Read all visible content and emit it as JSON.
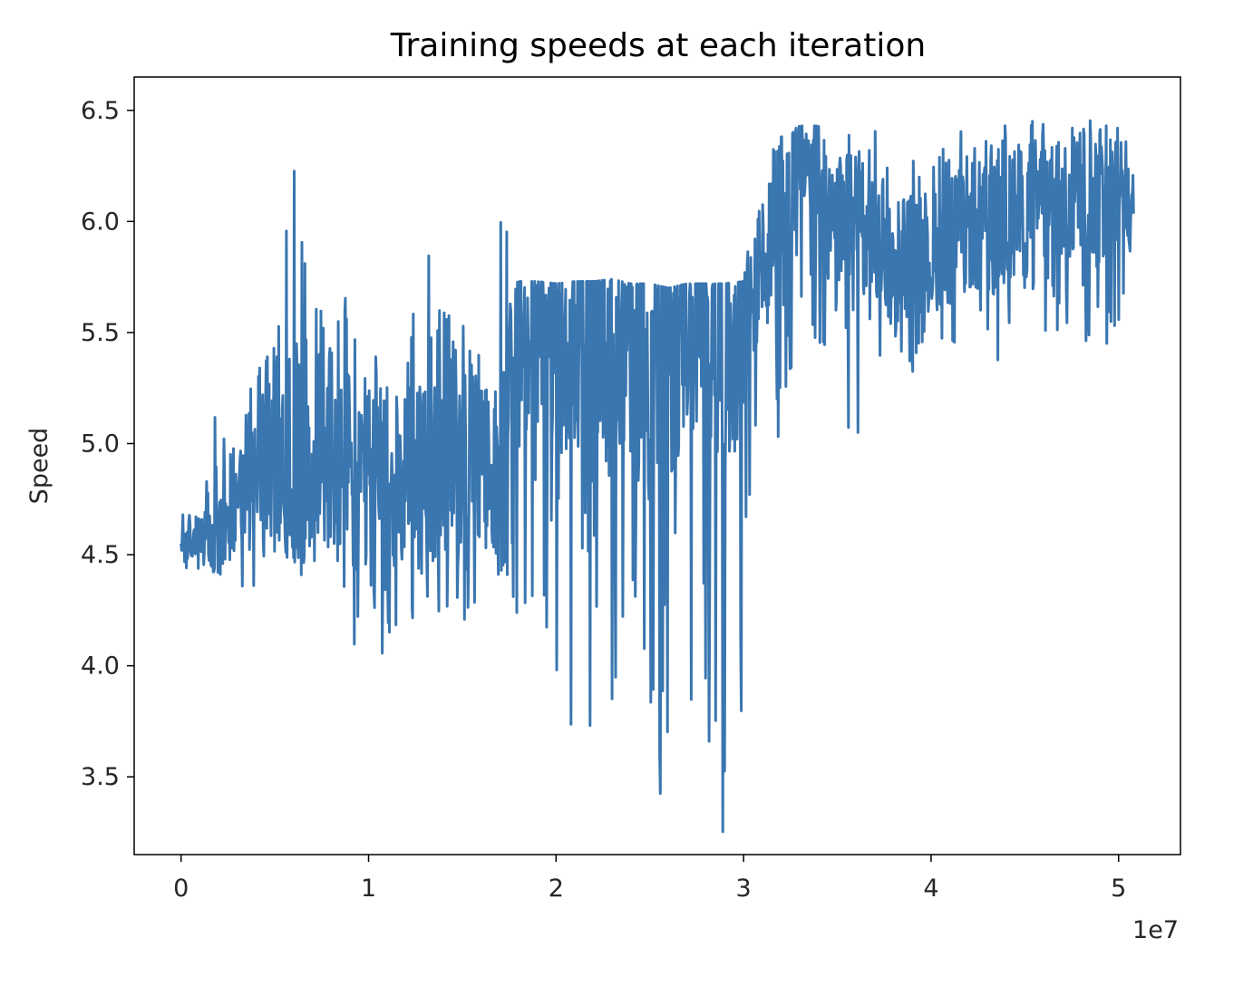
{
  "chart_data": {
    "type": "line",
    "title": "Training speeds at each iteration",
    "xlabel": "",
    "ylabel": "Speed",
    "x_offset_label": "1e7",
    "xlim": [
      -0.25,
      5.33
    ],
    "ylim": [
      3.15,
      6.65
    ],
    "x_ticks": [
      0,
      1,
      2,
      3,
      4,
      5
    ],
    "x_tick_labels": [
      "0",
      "1",
      "2",
      "3",
      "4",
      "5"
    ],
    "y_ticks": [
      3.5,
      4.0,
      4.5,
      5.0,
      5.5,
      6.0,
      6.5
    ],
    "y_tick_labels": [
      "3.5",
      "4.0",
      "4.5",
      "5.0",
      "5.5",
      "6.0",
      "6.5"
    ],
    "grid": false,
    "line_color": "#3a76b0",
    "series": [
      {
        "x": [
          0.0,
          0.1,
          0.2,
          0.3,
          0.4,
          0.5,
          0.6,
          0.7,
          0.8,
          0.9,
          1.0,
          1.1,
          1.2,
          1.3,
          1.4,
          1.5,
          1.6,
          1.7,
          1.8,
          1.9,
          2.0,
          2.1,
          2.2,
          2.3,
          2.4,
          2.5,
          2.6,
          2.7,
          2.8,
          2.9,
          3.0,
          3.1,
          3.2,
          3.3,
          3.4,
          3.5,
          3.6,
          3.7,
          3.8,
          3.9,
          4.0,
          4.1,
          4.2,
          4.3,
          4.4,
          4.5,
          4.6,
          4.7,
          4.8,
          4.9,
          5.0,
          5.08
        ],
        "values": [
          4.55,
          4.6,
          4.5,
          4.7,
          4.9,
          4.85,
          5.0,
          4.8,
          4.85,
          4.9,
          4.8,
          4.75,
          4.9,
          4.85,
          4.9,
          4.8,
          4.9,
          4.85,
          5.4,
          5.5,
          5.55,
          5.45,
          5.6,
          5.4,
          5.5,
          5.35,
          5.45,
          5.6,
          5.55,
          5.4,
          5.6,
          5.8,
          6.1,
          6.25,
          6.2,
          5.9,
          5.95,
          5.85,
          5.9,
          5.85,
          5.8,
          5.9,
          6.0,
          5.95,
          6.0,
          6.05,
          6.1,
          6.05,
          6.15,
          6.1,
          6.2,
          6.0
        ],
        "ymin": [
          4.43,
          4.43,
          4.42,
          4.33,
          4.33,
          4.33,
          4.4,
          4.38,
          4.38,
          4.02,
          3.85,
          4.02,
          4.02,
          4.2,
          4.2,
          4.2,
          4.2,
          4.3,
          4.22,
          4.2,
          3.65,
          3.7,
          3.7,
          3.6,
          3.65,
          3.22,
          3.25,
          3.7,
          3.65,
          3.2,
          3.88,
          5.6,
          4.85,
          5.65,
          5.3,
          5.02,
          5.02,
          5.3,
          5.4,
          5.3,
          5.5,
          5.45,
          5.3,
          5.35,
          5.3,
          5.3,
          5.4,
          5.5,
          5.5,
          5.2,
          5.5,
          5.93
        ],
        "ymax": [
          4.92,
          4.75,
          5.28,
          4.9,
          5.4,
          5.62,
          6.3,
          5.6,
          5.63,
          5.72,
          5.6,
          5.62,
          5.4,
          6.3,
          5.6,
          5.6,
          5.45,
          6.09,
          5.73,
          5.73,
          5.72,
          5.73,
          5.73,
          5.74,
          5.72,
          5.72,
          5.7,
          5.72,
          5.72,
          5.72,
          5.73,
          6.32,
          6.38,
          6.43,
          6.43,
          6.4,
          6.42,
          6.43,
          6.43,
          6.3,
          6.3,
          6.42,
          6.42,
          6.45,
          6.45,
          6.45,
          6.48,
          6.48,
          6.48,
          6.48,
          6.48,
          6.38
        ]
      }
    ]
  }
}
